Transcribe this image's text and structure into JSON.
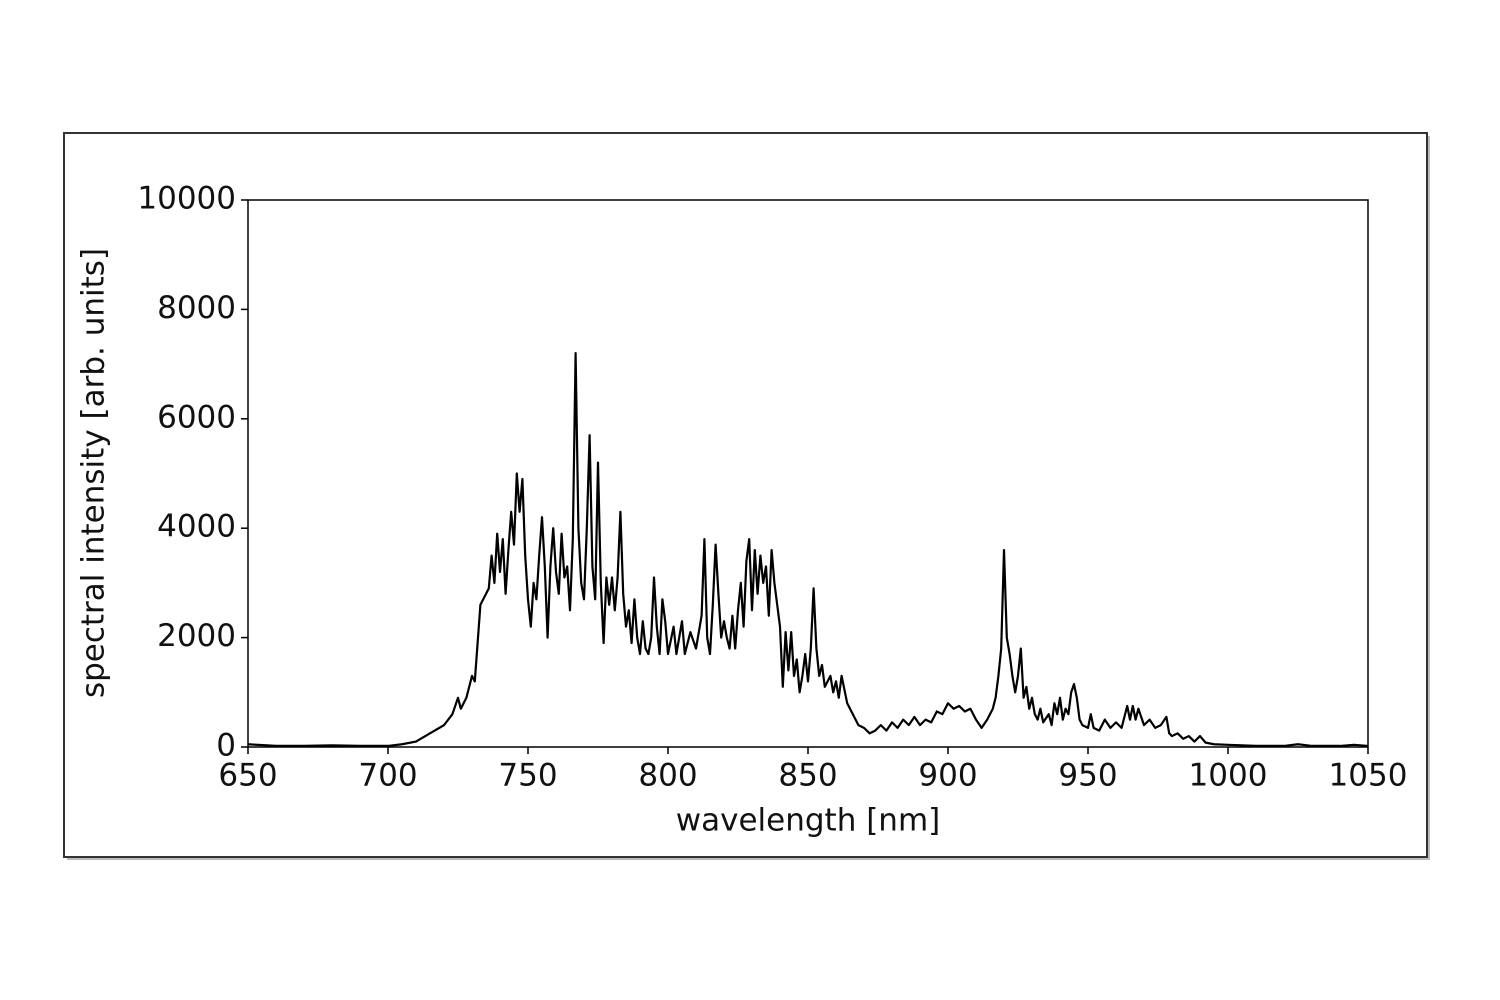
{
  "chart_data": {
    "type": "line",
    "color": "#000000",
    "x_label": "wavelength [nm]",
    "y_label": "spectral intensity [arb. units]",
    "xlim": [
      650,
      1050
    ],
    "ylim": [
      0,
      10000
    ],
    "xticks": [
      650,
      700,
      750,
      800,
      850,
      900,
      950,
      1000,
      1050
    ],
    "yticks": [
      0,
      2000,
      4000,
      6000,
      8000,
      10000
    ],
    "x": [
      650,
      660,
      670,
      680,
      690,
      700,
      705,
      710,
      715,
      720,
      723,
      725,
      726,
      728,
      730,
      731,
      733,
      735,
      736,
      737,
      738,
      739,
      740,
      741,
      742,
      743,
      744,
      745,
      746,
      747,
      748,
      749,
      750,
      751,
      752,
      753,
      754,
      755,
      756,
      757,
      758,
      759,
      760,
      761,
      762,
      763,
      764,
      765,
      766,
      767,
      768,
      769,
      770,
      771,
      772,
      773,
      774,
      775,
      776,
      777,
      778,
      779,
      780,
      781,
      782,
      783,
      784,
      785,
      786,
      787,
      788,
      789,
      790,
      791,
      792,
      793,
      794,
      795,
      796,
      797,
      798,
      799,
      800,
      802,
      803,
      805,
      806,
      808,
      810,
      812,
      813,
      814,
      815,
      816,
      817,
      818,
      819,
      820,
      821,
      822,
      823,
      824,
      825,
      826,
      827,
      828,
      829,
      830,
      831,
      832,
      833,
      834,
      835,
      836,
      837,
      838,
      839,
      840,
      841,
      842,
      843,
      844,
      845,
      846,
      847,
      848,
      849,
      850,
      851,
      852,
      853,
      854,
      855,
      856,
      858,
      859,
      860,
      861,
      862,
      864,
      866,
      868,
      870,
      872,
      874,
      876,
      878,
      880,
      882,
      884,
      886,
      888,
      890,
      892,
      894,
      896,
      898,
      900,
      902,
      904,
      906,
      908,
      910,
      912,
      914,
      916,
      917,
      918,
      919,
      920,
      921,
      922,
      923,
      924,
      925,
      926,
      927,
      928,
      929,
      930,
      931,
      932,
      933,
      934,
      936,
      937,
      938,
      939,
      940,
      941,
      942,
      943,
      944,
      945,
      946,
      947,
      948,
      950,
      951,
      952,
      954,
      956,
      958,
      960,
      962,
      964,
      965,
      966,
      967,
      968,
      970,
      972,
      974,
      976,
      978,
      979,
      980,
      982,
      984,
      986,
      988,
      990,
      992,
      995,
      1000,
      1005,
      1010,
      1020,
      1025,
      1030,
      1040,
      1045,
      1050
    ],
    "values": [
      50,
      20,
      20,
      30,
      20,
      20,
      50,
      100,
      250,
      400,
      600,
      900,
      700,
      900,
      1300,
      1200,
      2600,
      2800,
      2900,
      3500,
      3000,
      3900,
      3200,
      3800,
      2800,
      3600,
      4300,
      3700,
      5000,
      4300,
      4900,
      3500,
      2700,
      2200,
      3000,
      2700,
      3500,
      4200,
      3300,
      2000,
      3300,
      4000,
      3200,
      2800,
      3900,
      3100,
      3300,
      2500,
      3800,
      7200,
      4000,
      3000,
      2700,
      4000,
      5700,
      3300,
      2700,
      5200,
      3000,
      1900,
      3100,
      2600,
      3100,
      2500,
      3100,
      4300,
      2800,
      2200,
      2500,
      1900,
      2700,
      2000,
      1700,
      2300,
      1800,
      1700,
      2000,
      3100,
      2200,
      1700,
      2700,
      2300,
      1700,
      2200,
      1700,
      2300,
      1700,
      2100,
      1800,
      2400,
      3800,
      2000,
      1700,
      2600,
      3700,
      2800,
      2000,
      2300,
      2000,
      1800,
      2400,
      1800,
      2500,
      3000,
      2200,
      3400,
      3800,
      2500,
      3600,
      2800,
      3500,
      3000,
      3300,
      2400,
      3600,
      3000,
      2600,
      2200,
      1100,
      2100,
      1400,
      2100,
      1300,
      1600,
      1000,
      1300,
      1700,
      1200,
      1800,
      2900,
      1800,
      1300,
      1500,
      1100,
      1300,
      1000,
      1200,
      900,
      1300,
      800,
      600,
      400,
      350,
      250,
      300,
      400,
      300,
      450,
      350,
      500,
      400,
      550,
      400,
      500,
      450,
      650,
      600,
      800,
      700,
      750,
      650,
      700,
      500,
      350,
      500,
      700,
      900,
      1300,
      1800,
      3600,
      2000,
      1700,
      1300,
      1000,
      1300,
      1800,
      900,
      1100,
      700,
      900,
      600,
      500,
      700,
      450,
      600,
      400,
      800,
      600,
      900,
      500,
      700,
      600,
      1000,
      1150,
      900,
      500,
      400,
      350,
      600,
      350,
      300,
      500,
      350,
      450,
      350,
      750,
      500,
      750,
      500,
      700,
      400,
      500,
      350,
      400,
      550,
      250,
      200,
      250,
      150,
      200,
      100,
      200,
      80,
      50,
      40,
      30,
      20,
      20,
      50,
      20,
      20,
      40,
      20
    ]
  }
}
